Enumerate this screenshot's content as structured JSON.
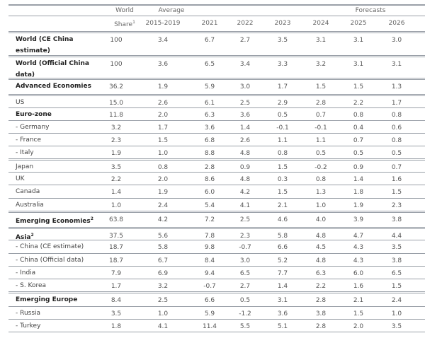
{
  "header": {
    "row1": {
      "world": "World",
      "average": "Average",
      "forecasts": "Forecasts"
    },
    "row2": {
      "share": "Share",
      "share_note": "1",
      "years": [
        "2015-2019",
        "2021",
        "2022",
        "2023",
        "2024",
        "2025",
        "2026"
      ]
    }
  },
  "rows": [
    {
      "label": "World (CE China estimate)",
      "bold": true,
      "values": [
        "100",
        "3.4",
        "6.7",
        "2.7",
        "3.5",
        "3.1",
        "3.1",
        "3.0"
      ]
    },
    {
      "label": "World (Official China data)",
      "bold": true,
      "values": [
        "100",
        "3.6",
        "6.5",
        "3.4",
        "3.3",
        "3.2",
        "3.1",
        "3.1"
      ]
    },
    {
      "label": "Advanced Economies",
      "bold": true,
      "values": [
        "36.2",
        "1.9",
        "5.9",
        "3.0",
        "1.7",
        "1.5",
        "1.5",
        "1.3"
      ]
    },
    {
      "label": "US",
      "bold": false,
      "values": [
        "15.0",
        "2.6",
        "6.1",
        "2.5",
        "2.9",
        "2.8",
        "2.2",
        "1.7"
      ]
    },
    {
      "label": "Euro-zone",
      "bold": true,
      "values": [
        "11.8",
        "2.0",
        "6.3",
        "3.6",
        "0.5",
        "0.7",
        "0.8",
        "0.8"
      ]
    },
    {
      "label": "- Germany",
      "bold": false,
      "values": [
        "3.2",
        "1.7",
        "3.6",
        "1.4",
        "-0.1",
        "-0.1",
        "0.4",
        "0.6"
      ]
    },
    {
      "label": "- France",
      "bold": false,
      "values": [
        "2.3",
        "1.5",
        "6.8",
        "2.6",
        "1.1",
        "1.1",
        "0.7",
        "0.8"
      ]
    },
    {
      "label": "- Italy",
      "bold": false,
      "values": [
        "1.9",
        "1.0",
        "8.8",
        "4.8",
        "0.8",
        "0.5",
        "0.5",
        "0.5"
      ]
    },
    {
      "label": "Japan",
      "bold": false,
      "values": [
        "3.5",
        "0.8",
        "2.8",
        "0.9",
        "1.5",
        "-0.2",
        "0.9",
        "0.7"
      ]
    },
    {
      "label": "UK",
      "bold": false,
      "values": [
        "2.2",
        "2.0",
        "8.6",
        "4.8",
        "0.3",
        "0.8",
        "1.4",
        "1.6"
      ]
    },
    {
      "label": "Canada",
      "bold": false,
      "values": [
        "1.4",
        "1.9",
        "6.0",
        "4.2",
        "1.5",
        "1.3",
        "1.8",
        "1.5"
      ]
    },
    {
      "label": "Australia",
      "bold": false,
      "values": [
        "1.0",
        "2.4",
        "5.4",
        "4.1",
        "2.1",
        "1.0",
        "1.9",
        "2.3"
      ]
    },
    {
      "label": "Emerging Economies",
      "note": "2",
      "bold": true,
      "values": [
        "63.8",
        "4.2",
        "7.2",
        "2.5",
        "4.6",
        "4.0",
        "3.9",
        "3.8"
      ]
    },
    {
      "label": "Asia",
      "note": "2",
      "bold": true,
      "values": [
        "37.5",
        "5.6",
        "7.8",
        "2.3",
        "5.8",
        "4.8",
        "4.7",
        "4.4"
      ]
    },
    {
      "label": "-  China (CE estimate)",
      "bold": false,
      "values": [
        "18.7",
        "5.8",
        "9.8",
        "-0.7",
        "6.6",
        "4.5",
        "4.3",
        "3.5"
      ]
    },
    {
      "label": "-  China (Official data)",
      "bold": false,
      "values": [
        "18.7",
        "6.7",
        "8.4",
        "3.0",
        "5.2",
        "4.8",
        "4.3",
        "3.8"
      ]
    },
    {
      "label": "- India",
      "bold": false,
      "values": [
        "7.9",
        "6.9",
        "9.4",
        "6.5",
        "7.7",
        "6.3",
        "6.0",
        "6.5"
      ]
    },
    {
      "label": "- S. Korea",
      "bold": false,
      "values": [
        "1.7",
        "3.2",
        "-0.7",
        "2.7",
        "1.4",
        "2.2",
        "1.6",
        "1.5"
      ]
    },
    {
      "label": "Emerging Europe",
      "bold": true,
      "values": [
        "8.4",
        "2.5",
        "6.6",
        "0.5",
        "3.1",
        "2.8",
        "2.1",
        "2.4"
      ]
    },
    {
      "label": "- Russia",
      "bold": false,
      "values": [
        "3.5",
        "1.0",
        "5.9",
        "-1.2",
        "3.6",
        "3.8",
        "1.5",
        "1.0"
      ]
    },
    {
      "label": "- Turkey",
      "bold": false,
      "values": [
        "1.8",
        "4.1",
        "11.4",
        "5.5",
        "5.1",
        "2.8",
        "2.0",
        "3.5"
      ]
    }
  ]
}
